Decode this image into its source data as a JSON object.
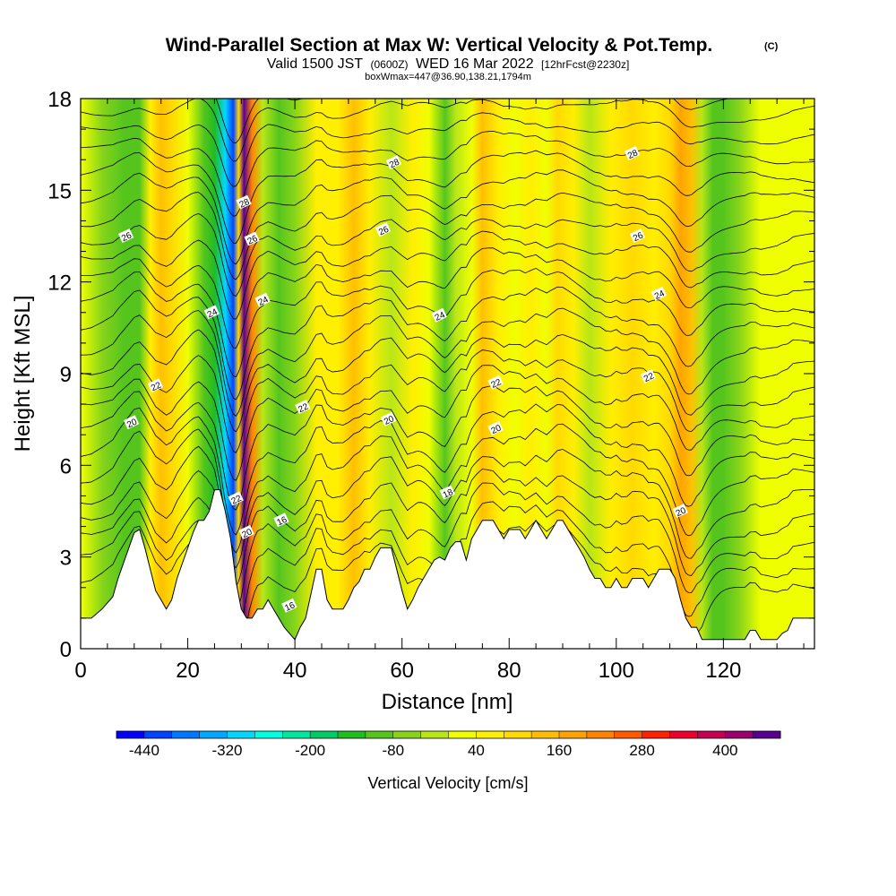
{
  "header": {
    "title": "Wind-Parallel Section at Max W: Vertical Velocity & Pot.Temp.",
    "copyright": "(C)",
    "valid_pre": "Valid 1500 JST",
    "valid_utc": "(0600Z)",
    "valid_post": "WED 16 Mar 2022",
    "forecast": "[12hrFcst@2230z]",
    "boxinfo": "boxWmax=447@36.90,138.21,1794m"
  },
  "chart_data": {
    "type": "heatmap",
    "xlabel": "Distance [nm]",
    "ylabel": "Height [Kft MSL]",
    "xlim": [
      0,
      137
    ],
    "ylim": [
      0,
      18
    ],
    "xticks": [
      "0",
      "20",
      "40",
      "60",
      "80",
      "100",
      "120"
    ],
    "yticks": [
      "0",
      "3",
      "6",
      "9",
      "12",
      "15",
      "18"
    ],
    "colorbar": {
      "label": "Vertical Velocity [cm/s]",
      "ticks": [
        "-440",
        "-320",
        "-200",
        "-80",
        "40",
        "160",
        "280",
        "400"
      ],
      "min": -480,
      "max": 480,
      "colors": [
        "#0000ff",
        "#0044ff",
        "#0077ff",
        "#00a8ff",
        "#00d8ff",
        "#00ffe0",
        "#00e8a0",
        "#00cc66",
        "#22bb22",
        "#55c51e",
        "#88d41a",
        "#b8e617",
        "#f0ff00",
        "#ffef00",
        "#ffd900",
        "#ffbf00",
        "#ffa300",
        "#ff8500",
        "#ff5a00",
        "#ff2200",
        "#ee0030",
        "#c50052",
        "#9b006e",
        "#5a0090"
      ]
    },
    "velocity_columns": [
      {
        "x": 0,
        "w": 0
      },
      {
        "x": 4,
        "w": -60
      },
      {
        "x": 8,
        "w": -100
      },
      {
        "x": 11,
        "w": -90
      },
      {
        "x": 13,
        "w": 60
      },
      {
        "x": 15,
        "w": 150
      },
      {
        "x": 17,
        "w": 110
      },
      {
        "x": 20,
        "w": 20
      },
      {
        "x": 23,
        "w": -90
      },
      {
        "x": 25,
        "w": -160
      },
      {
        "x": 27,
        "w": -300
      },
      {
        "x": 28.5,
        "w": -440
      },
      {
        "x": 29.5,
        "w": 100
      },
      {
        "x": 30.5,
        "w": 447
      },
      {
        "x": 32,
        "w": 220
      },
      {
        "x": 34,
        "w": -40
      },
      {
        "x": 37,
        "w": -110
      },
      {
        "x": 40,
        "w": -60
      },
      {
        "x": 44,
        "w": 40
      },
      {
        "x": 48,
        "w": 70
      },
      {
        "x": 51,
        "w": 120
      },
      {
        "x": 54,
        "w": 50
      },
      {
        "x": 58,
        "w": -30
      },
      {
        "x": 62,
        "w": 60
      },
      {
        "x": 65,
        "w": 10
      },
      {
        "x": 68,
        "w": -120
      },
      {
        "x": 70,
        "w": -40
      },
      {
        "x": 73,
        "w": 20
      },
      {
        "x": 75,
        "w": 120
      },
      {
        "x": 78,
        "w": 60
      },
      {
        "x": 81,
        "w": 10
      },
      {
        "x": 84,
        "w": 70
      },
      {
        "x": 87,
        "w": 10
      },
      {
        "x": 89,
        "w": 80
      },
      {
        "x": 92,
        "w": 40
      },
      {
        "x": 95,
        "w": -40
      },
      {
        "x": 99,
        "w": 50
      },
      {
        "x": 103,
        "w": 90
      },
      {
        "x": 107,
        "w": 60
      },
      {
        "x": 110,
        "w": 100
      },
      {
        "x": 112,
        "w": 180
      },
      {
        "x": 114,
        "w": 120
      },
      {
        "x": 116,
        "w": -20
      },
      {
        "x": 118,
        "w": -90
      },
      {
        "x": 120,
        "w": -120
      },
      {
        "x": 123,
        "w": -60
      },
      {
        "x": 127,
        "w": 20
      },
      {
        "x": 131,
        "w": 30
      },
      {
        "x": 134,
        "w": 0
      },
      {
        "x": 137,
        "w": 20
      }
    ],
    "terrain": [
      [
        0,
        1.0
      ],
      [
        2,
        1.0
      ],
      [
        4,
        1.3
      ],
      [
        6,
        1.7
      ],
      [
        7,
        2.3
      ],
      [
        8,
        2.8
      ],
      [
        9,
        3.3
      ],
      [
        10,
        3.8
      ],
      [
        11,
        3.9
      ],
      [
        12,
        3.3
      ],
      [
        13,
        2.6
      ],
      [
        14,
        1.9
      ],
      [
        15,
        1.6
      ],
      [
        16,
        1.3
      ],
      [
        17,
        1.6
      ],
      [
        18,
        2.3
      ],
      [
        19,
        2.8
      ],
      [
        20,
        3.3
      ],
      [
        21,
        3.8
      ],
      [
        22,
        4.2
      ],
      [
        23,
        4.2
      ],
      [
        24,
        4.5
      ],
      [
        25,
        5.2
      ],
      [
        26,
        5.2
      ],
      [
        27,
        4.5
      ],
      [
        28,
        3.6
      ],
      [
        29,
        2.2
      ],
      [
        30,
        1.3
      ],
      [
        31,
        1.0
      ],
      [
        32,
        1.0
      ],
      [
        33,
        1.3
      ],
      [
        34,
        1.3
      ],
      [
        35,
        1.6
      ],
      [
        36,
        1.3
      ],
      [
        37,
        1.0
      ],
      [
        38,
        0.7
      ],
      [
        39,
        0.5
      ],
      [
        40,
        0.3
      ],
      [
        41,
        0.7
      ],
      [
        42,
        1.0
      ],
      [
        43,
        1.8
      ],
      [
        44,
        2.6
      ],
      [
        45,
        2.6
      ],
      [
        46,
        1.6
      ],
      [
        47,
        1.3
      ],
      [
        48,
        1.3
      ],
      [
        49,
        1.3
      ],
      [
        50,
        1.6
      ],
      [
        51,
        2.0
      ],
      [
        52,
        2.2
      ],
      [
        53,
        2.6
      ],
      [
        54,
        2.6
      ],
      [
        55,
        3.0
      ],
      [
        56,
        3.3
      ],
      [
        57,
        3.3
      ],
      [
        58,
        3.3
      ],
      [
        59,
        2.6
      ],
      [
        60,
        1.9
      ],
      [
        61,
        1.3
      ],
      [
        62,
        1.6
      ],
      [
        63,
        2.0
      ],
      [
        64,
        2.3
      ],
      [
        65,
        2.6
      ],
      [
        66,
        2.9
      ],
      [
        67,
        3.0
      ],
      [
        68,
        2.9
      ],
      [
        69,
        3.3
      ],
      [
        70,
        3.5
      ],
      [
        71,
        3.5
      ],
      [
        72,
        2.9
      ],
      [
        73,
        3.6
      ],
      [
        74,
        3.9
      ],
      [
        75,
        4.2
      ],
      [
        76,
        4.2
      ],
      [
        77,
        4.2
      ],
      [
        78,
        3.9
      ],
      [
        79,
        3.6
      ],
      [
        80,
        3.9
      ],
      [
        81,
        3.9
      ],
      [
        82,
        3.9
      ],
      [
        83,
        3.6
      ],
      [
        84,
        3.9
      ],
      [
        85,
        4.2
      ],
      [
        86,
        3.9
      ],
      [
        87,
        3.6
      ],
      [
        88,
        3.9
      ],
      [
        89,
        4.2
      ],
      [
        90,
        4.2
      ],
      [
        91,
        3.9
      ],
      [
        92,
        3.6
      ],
      [
        93,
        3.3
      ],
      [
        94,
        3.0
      ],
      [
        95,
        2.6
      ],
      [
        96,
        2.3
      ],
      [
        97,
        2.3
      ],
      [
        98,
        2.0
      ],
      [
        99,
        2.0
      ],
      [
        100,
        2.3
      ],
      [
        101,
        2.0
      ],
      [
        102,
        2.0
      ],
      [
        103,
        2.3
      ],
      [
        104,
        2.3
      ],
      [
        105,
        2.3
      ],
      [
        106,
        2.0
      ],
      [
        107,
        2.3
      ],
      [
        108,
        2.6
      ],
      [
        109,
        2.6
      ],
      [
        110,
        2.6
      ],
      [
        111,
        2.3
      ],
      [
        112,
        1.6
      ],
      [
        113,
        1.0
      ],
      [
        114,
        0.7
      ],
      [
        115,
        0.7
      ],
      [
        116,
        0.3
      ],
      [
        117,
        0.3
      ],
      [
        118,
        0.3
      ],
      [
        119,
        0.3
      ],
      [
        120,
        0.3
      ],
      [
        121,
        0.3
      ],
      [
        122,
        0.3
      ],
      [
        123,
        0.3
      ],
      [
        124,
        0.3
      ],
      [
        125,
        0.6
      ],
      [
        126,
        0.6
      ],
      [
        127,
        0.3
      ],
      [
        128,
        0.3
      ],
      [
        129,
        0.3
      ],
      [
        130,
        0.3
      ],
      [
        131,
        0.5
      ],
      [
        132,
        0.6
      ],
      [
        133,
        1.0
      ],
      [
        134,
        1.0
      ],
      [
        135,
        1.0
      ],
      [
        136,
        1.0
      ],
      [
        137,
        1.0
      ]
    ],
    "contour_labels": [
      {
        "text": "26",
        "x": 8.5,
        "y": 13.5
      },
      {
        "text": "28",
        "x": 30.5,
        "y": 14.6
      },
      {
        "text": "26",
        "x": 32.0,
        "y": 13.4
      },
      {
        "text": "24",
        "x": 34.0,
        "y": 11.4
      },
      {
        "text": "24",
        "x": 24.5,
        "y": 11.0
      },
      {
        "text": "22",
        "x": 14.0,
        "y": 8.6
      },
      {
        "text": "20",
        "x": 9.5,
        "y": 7.4
      },
      {
        "text": "22",
        "x": 41.5,
        "y": 7.9
      },
      {
        "text": "20",
        "x": 57.5,
        "y": 7.5
      },
      {
        "text": "28",
        "x": 58.5,
        "y": 15.9
      },
      {
        "text": "26",
        "x": 56.5,
        "y": 13.7
      },
      {
        "text": "24",
        "x": 67.0,
        "y": 10.9
      },
      {
        "text": "22",
        "x": 77.5,
        "y": 8.7
      },
      {
        "text": "20",
        "x": 77.5,
        "y": 7.2
      },
      {
        "text": "18",
        "x": 68.5,
        "y": 5.1
      },
      {
        "text": "16",
        "x": 37.5,
        "y": 4.2
      },
      {
        "text": "22",
        "x": 29.0,
        "y": 4.9
      },
      {
        "text": "20",
        "x": 31.0,
        "y": 3.8
      },
      {
        "text": "16",
        "x": 39.0,
        "y": 1.4
      },
      {
        "text": "28",
        "x": 103.0,
        "y": 16.2
      },
      {
        "text": "26",
        "x": 104.0,
        "y": 13.5
      },
      {
        "text": "24",
        "x": 108.0,
        "y": 11.6
      },
      {
        "text": "22",
        "x": 106.0,
        "y": 8.9
      },
      {
        "text": "20",
        "x": 112.0,
        "y": 4.5
      }
    ]
  }
}
